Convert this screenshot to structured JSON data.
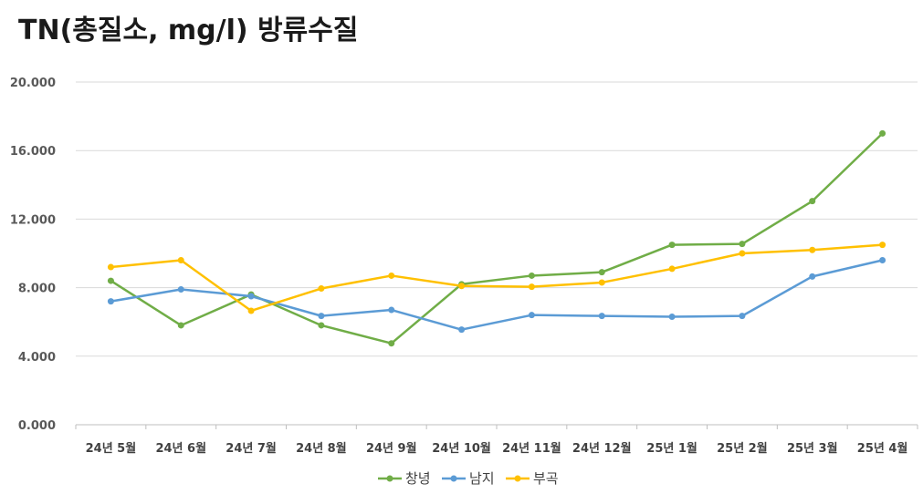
{
  "chart_data": {
    "type": "line",
    "title": "TN(총질소, mg/l) 방류수질",
    "categories": [
      "24년 5월",
      "24년 6월",
      "24년 7월",
      "24년 8월",
      "24년 9월",
      "24년 10월",
      "24년 11월",
      "24년 12월",
      "25년 1월",
      "25년 2월",
      "25년 3월",
      "25년 4월"
    ],
    "ylim": [
      0,
      20
    ],
    "yticks": [
      "0.000",
      "4.000",
      "8.000",
      "12.000",
      "16.000",
      "20.000"
    ],
    "ytick_values": [
      0,
      4,
      8,
      12,
      16,
      20
    ],
    "grid": true,
    "legend_position": "bottom",
    "series": [
      {
        "name": "창녕",
        "color": "#70ad47",
        "values": [
          8.4,
          5.8,
          7.6,
          5.8,
          4.75,
          8.2,
          8.7,
          8.9,
          10.5,
          10.55,
          13.05,
          17.0
        ]
      },
      {
        "name": "남지",
        "color": "#5b9bd5",
        "values": [
          7.2,
          7.9,
          7.5,
          6.35,
          6.7,
          5.55,
          6.4,
          6.35,
          6.3,
          6.35,
          8.65,
          9.6
        ]
      },
      {
        "name": "부곡",
        "color": "#ffc000",
        "values": [
          9.2,
          9.6,
          6.65,
          7.95,
          8.7,
          8.1,
          8.05,
          8.3,
          9.1,
          10.0,
          10.2,
          10.5
        ]
      }
    ]
  }
}
